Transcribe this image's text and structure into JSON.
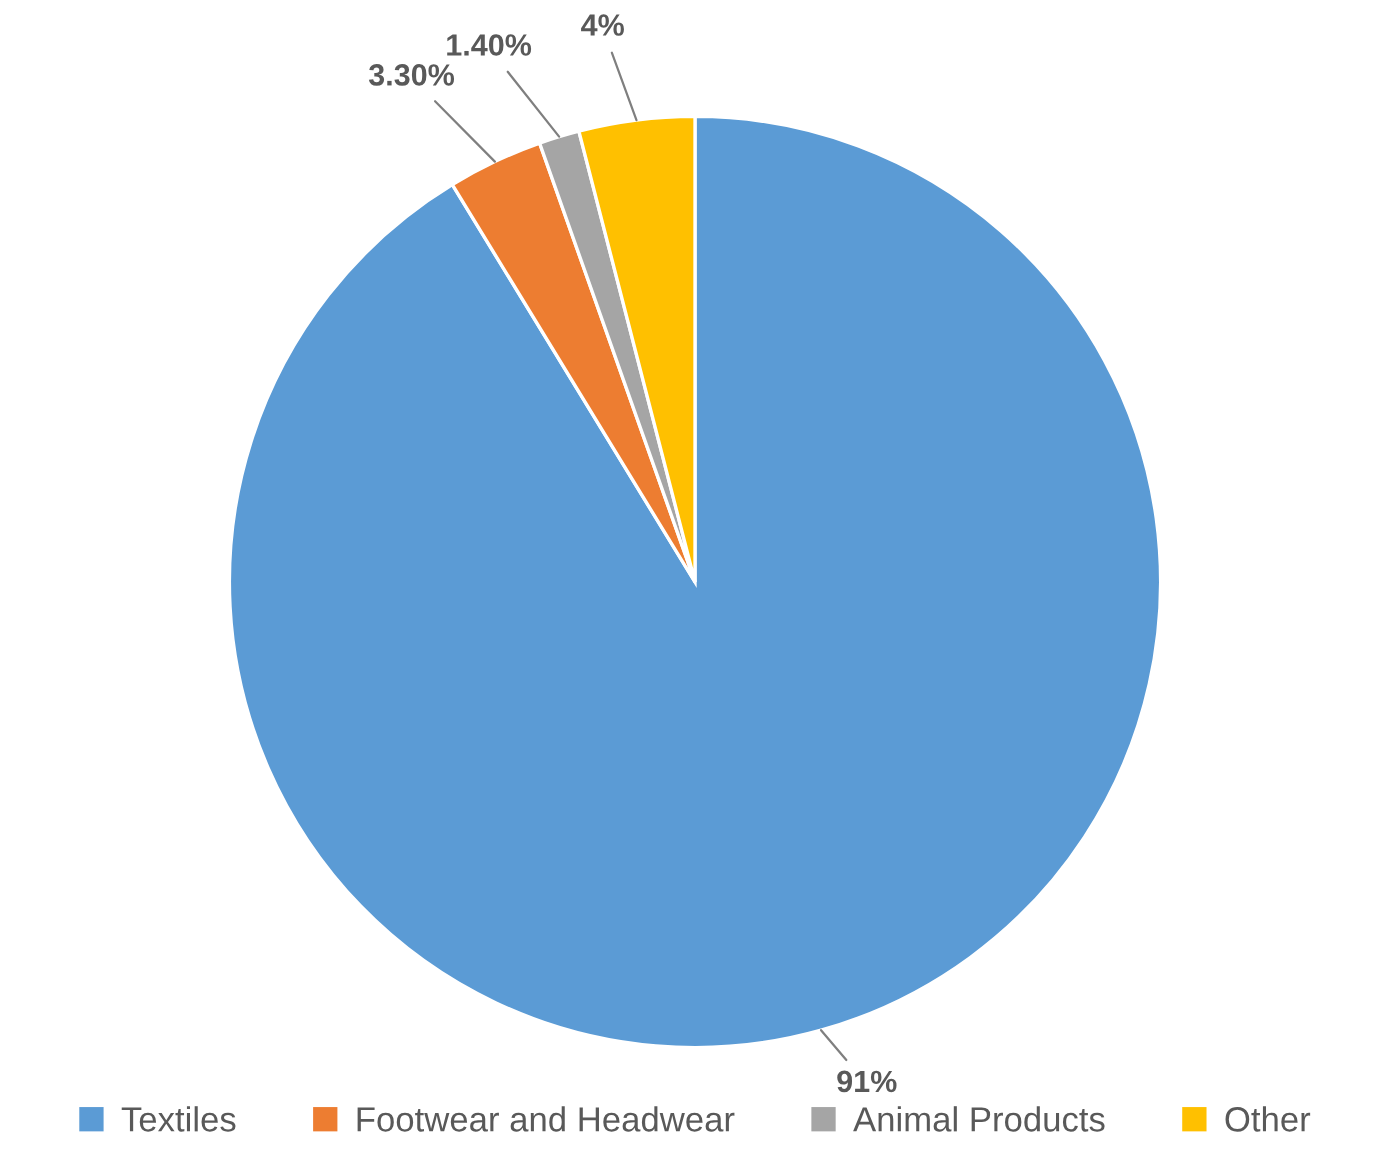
{
  "chart_data": {
    "type": "pie",
    "categories": [
      "Textiles",
      "Footwear and Headwear",
      "Animal Products",
      "Other"
    ],
    "values": [
      91,
      3.3,
      1.4,
      4
    ],
    "value_labels": [
      "91%",
      "3.30%",
      "1.40%",
      "4%"
    ],
    "colors": [
      "#5b9bd5",
      "#ed7d31",
      "#a5a5a5",
      "#ffc000"
    ],
    "legend": "bottom"
  }
}
